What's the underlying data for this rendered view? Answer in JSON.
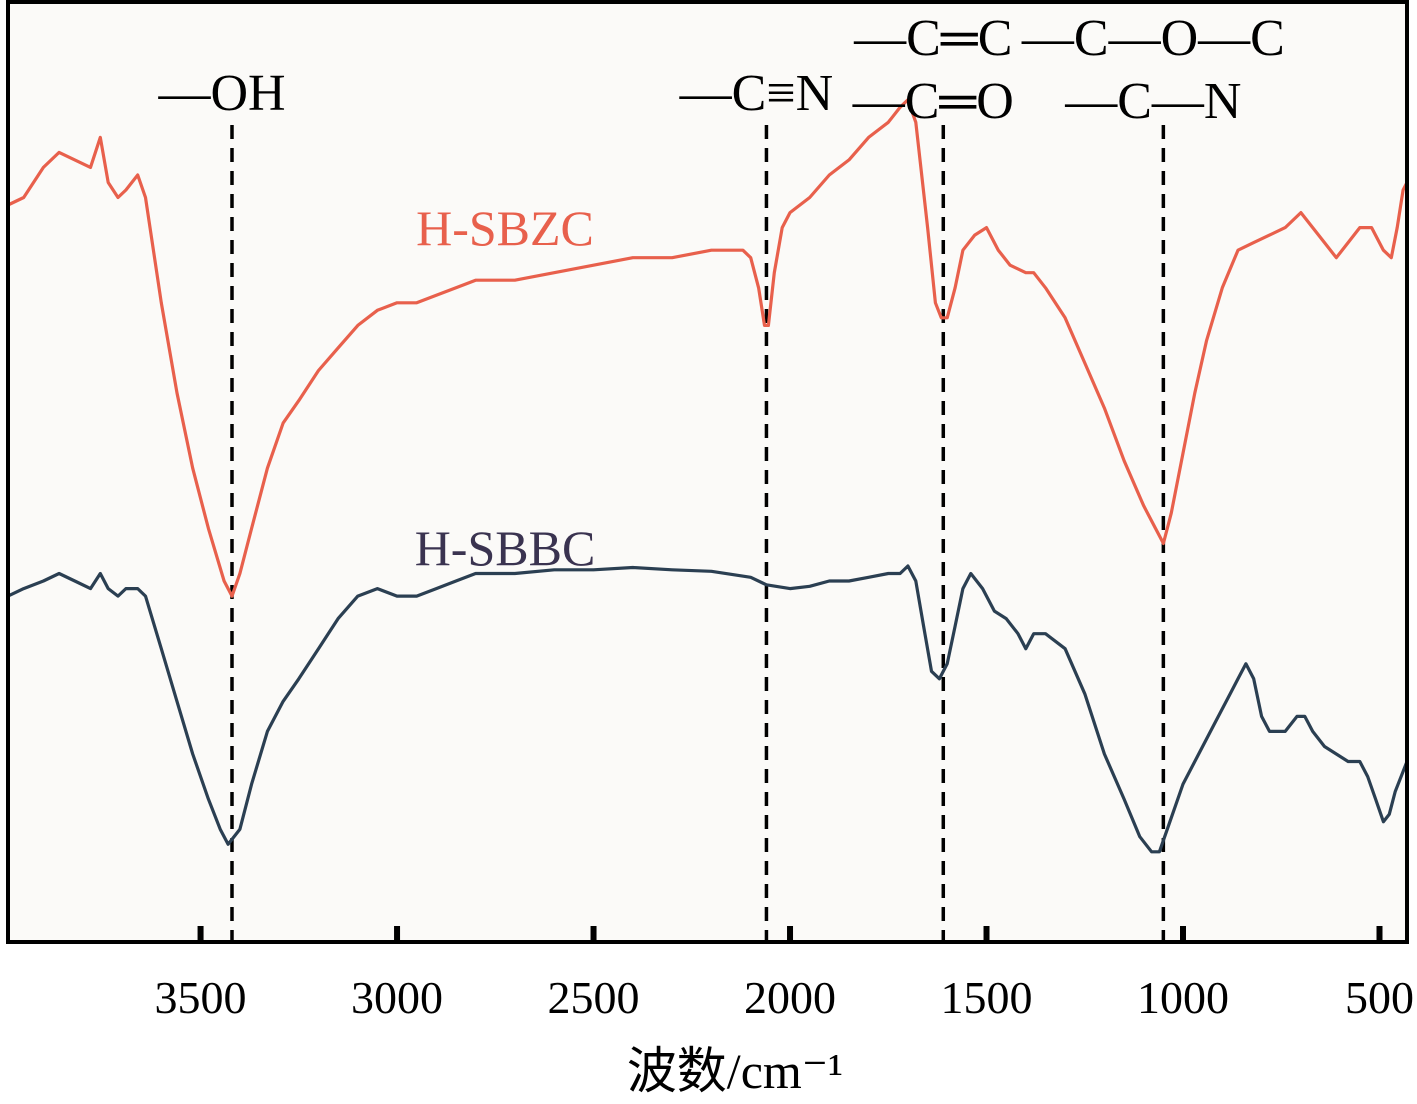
{
  "chart_data": {
    "type": "line",
    "title": "",
    "xlabel": "波数/cm⁻¹",
    "ylabel": "",
    "xlim": [
      3990,
      430
    ],
    "x_reversed": true,
    "grid": false,
    "xticks": [
      3500,
      3000,
      2500,
      2000,
      1500,
      1000,
      500
    ],
    "xtick_labels": [
      "3500",
      "3000",
      "2500",
      "2000",
      "1500",
      "1000",
      "500"
    ],
    "y_units": "arbitrary (transmittance, curves offset)",
    "annotations": [
      {
        "x": 3420,
        "labels": [
          "—OH"
        ]
      },
      {
        "x": 2060,
        "labels": [
          "—C≡N"
        ]
      },
      {
        "x": 1610,
        "labels": [
          "—C═C",
          "—C═O"
        ]
      },
      {
        "x": 1050,
        "labels": [
          "—C—O—C",
          "—C—N"
        ]
      }
    ],
    "series": [
      {
        "name": "H-SBZC",
        "color": "#e8604c",
        "points": [
          [
            3990,
            73
          ],
          [
            3950,
            74
          ],
          [
            3900,
            78
          ],
          [
            3860,
            80
          ],
          [
            3820,
            79
          ],
          [
            3780,
            78
          ],
          [
            3755,
            82
          ],
          [
            3735,
            76
          ],
          [
            3710,
            74
          ],
          [
            3690,
            75
          ],
          [
            3660,
            77
          ],
          [
            3640,
            74
          ],
          [
            3600,
            60
          ],
          [
            3560,
            48
          ],
          [
            3520,
            38
          ],
          [
            3480,
            30
          ],
          [
            3440,
            23
          ],
          [
            3420,
            21
          ],
          [
            3400,
            24
          ],
          [
            3370,
            30
          ],
          [
            3330,
            38
          ],
          [
            3290,
            44
          ],
          [
            3250,
            47
          ],
          [
            3200,
            51
          ],
          [
            3150,
            54
          ],
          [
            3100,
            57
          ],
          [
            3050,
            59
          ],
          [
            3000,
            60
          ],
          [
            2950,
            60
          ],
          [
            2900,
            61
          ],
          [
            2850,
            62
          ],
          [
            2800,
            63
          ],
          [
            2700,
            63
          ],
          [
            2600,
            64
          ],
          [
            2500,
            65
          ],
          [
            2400,
            66
          ],
          [
            2300,
            66
          ],
          [
            2200,
            67
          ],
          [
            2120,
            67
          ],
          [
            2100,
            66
          ],
          [
            2080,
            62
          ],
          [
            2065,
            57
          ],
          [
            2055,
            57
          ],
          [
            2040,
            64
          ],
          [
            2020,
            70
          ],
          [
            2000,
            72
          ],
          [
            1950,
            74
          ],
          [
            1900,
            77
          ],
          [
            1850,
            79
          ],
          [
            1800,
            82
          ],
          [
            1750,
            84
          ],
          [
            1720,
            86
          ],
          [
            1700,
            87
          ],
          [
            1680,
            84
          ],
          [
            1650,
            70
          ],
          [
            1630,
            60
          ],
          [
            1615,
            58
          ],
          [
            1600,
            58
          ],
          [
            1580,
            62
          ],
          [
            1560,
            67
          ],
          [
            1530,
            69
          ],
          [
            1500,
            70
          ],
          [
            1470,
            67
          ],
          [
            1440,
            65
          ],
          [
            1400,
            64
          ],
          [
            1380,
            64
          ],
          [
            1350,
            62
          ],
          [
            1300,
            58
          ],
          [
            1250,
            52
          ],
          [
            1200,
            46
          ],
          [
            1150,
            39
          ],
          [
            1100,
            33
          ],
          [
            1070,
            30
          ],
          [
            1050,
            28
          ],
          [
            1030,
            32
          ],
          [
            1000,
            40
          ],
          [
            970,
            48
          ],
          [
            940,
            55
          ],
          [
            900,
            62
          ],
          [
            860,
            67
          ],
          [
            820,
            68
          ],
          [
            780,
            69
          ],
          [
            740,
            70
          ],
          [
            700,
            72
          ],
          [
            670,
            70
          ],
          [
            640,
            68
          ],
          [
            610,
            66
          ],
          [
            580,
            68
          ],
          [
            550,
            70
          ],
          [
            520,
            70
          ],
          [
            490,
            67
          ],
          [
            470,
            66
          ],
          [
            455,
            70
          ],
          [
            440,
            75
          ],
          [
            430,
            76
          ]
        ]
      },
      {
        "name": "H-SBBC",
        "color": "#2b3f52",
        "points": [
          [
            3990,
            21
          ],
          [
            3950,
            22
          ],
          [
            3900,
            23
          ],
          [
            3860,
            24
          ],
          [
            3820,
            23
          ],
          [
            3780,
            22
          ],
          [
            3755,
            24
          ],
          [
            3735,
            22
          ],
          [
            3710,
            21
          ],
          [
            3690,
            22
          ],
          [
            3660,
            22
          ],
          [
            3640,
            21
          ],
          [
            3600,
            14
          ],
          [
            3560,
            7
          ],
          [
            3520,
            0
          ],
          [
            3480,
            -6
          ],
          [
            3450,
            -10
          ],
          [
            3430,
            -12
          ],
          [
            3400,
            -10
          ],
          [
            3370,
            -4
          ],
          [
            3330,
            3
          ],
          [
            3290,
            7
          ],
          [
            3250,
            10
          ],
          [
            3200,
            14
          ],
          [
            3150,
            18
          ],
          [
            3100,
            21
          ],
          [
            3050,
            22
          ],
          [
            3000,
            21
          ],
          [
            2950,
            21
          ],
          [
            2900,
            22
          ],
          [
            2850,
            23
          ],
          [
            2800,
            24
          ],
          [
            2700,
            24
          ],
          [
            2600,
            24.5
          ],
          [
            2500,
            24.5
          ],
          [
            2400,
            24.8
          ],
          [
            2300,
            24.5
          ],
          [
            2200,
            24.3
          ],
          [
            2100,
            23.5
          ],
          [
            2060,
            22.5
          ],
          [
            2000,
            22
          ],
          [
            1950,
            22.3
          ],
          [
            1900,
            23
          ],
          [
            1850,
            23
          ],
          [
            1800,
            23.5
          ],
          [
            1750,
            24
          ],
          [
            1720,
            24
          ],
          [
            1700,
            25
          ],
          [
            1680,
            23
          ],
          [
            1660,
            17
          ],
          [
            1640,
            11
          ],
          [
            1620,
            10
          ],
          [
            1600,
            12
          ],
          [
            1580,
            17
          ],
          [
            1560,
            22
          ],
          [
            1540,
            24
          ],
          [
            1510,
            22
          ],
          [
            1480,
            19
          ],
          [
            1450,
            18
          ],
          [
            1420,
            16
          ],
          [
            1400,
            14
          ],
          [
            1380,
            16
          ],
          [
            1350,
            16
          ],
          [
            1300,
            14
          ],
          [
            1250,
            8
          ],
          [
            1200,
            0
          ],
          [
            1150,
            -6
          ],
          [
            1110,
            -11
          ],
          [
            1080,
            -13
          ],
          [
            1060,
            -13
          ],
          [
            1040,
            -10
          ],
          [
            1000,
            -4
          ],
          [
            960,
            0
          ],
          [
            920,
            4
          ],
          [
            880,
            8
          ],
          [
            860,
            10
          ],
          [
            840,
            12
          ],
          [
            820,
            10
          ],
          [
            800,
            5
          ],
          [
            780,
            3
          ],
          [
            740,
            3
          ],
          [
            710,
            5
          ],
          [
            690,
            5
          ],
          [
            670,
            3
          ],
          [
            640,
            1
          ],
          [
            610,
            0
          ],
          [
            580,
            -1
          ],
          [
            550,
            -1
          ],
          [
            530,
            -3
          ],
          [
            510,
            -6
          ],
          [
            490,
            -9
          ],
          [
            475,
            -8
          ],
          [
            460,
            -5
          ],
          [
            445,
            -3
          ],
          [
            430,
            -1
          ]
        ]
      }
    ]
  }
}
